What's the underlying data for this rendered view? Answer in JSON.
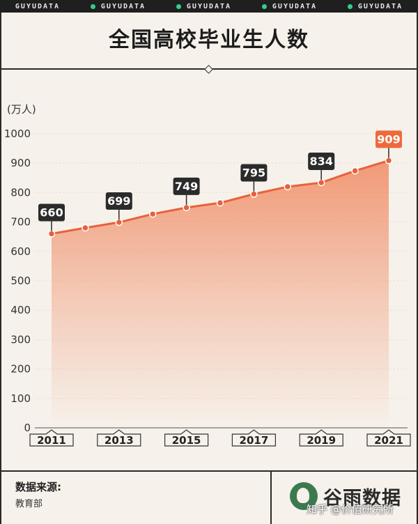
{
  "top_banner": {
    "repeat": 5,
    "brand": "GUYUDATA"
  },
  "title": "全国高校毕业生人数",
  "unit": "(万人)",
  "chart_data": {
    "type": "area",
    "x": [
      2011,
      2012,
      2013,
      2014,
      2015,
      2016,
      2017,
      2018,
      2019,
      2020,
      2021
    ],
    "values": [
      660,
      680,
      699,
      727,
      749,
      765,
      795,
      820,
      834,
      874,
      909
    ],
    "labeled_years": [
      2011,
      2013,
      2015,
      2017,
      2019,
      2021
    ],
    "x_tick_labels": [
      "2011",
      "2013",
      "2015",
      "2017",
      "2019",
      "2021"
    ],
    "y_ticks": [
      0,
      100,
      200,
      300,
      400,
      500,
      600,
      700,
      800,
      900,
      1000
    ],
    "ylim": [
      0,
      1000
    ],
    "highlight_year": 2021,
    "colors": {
      "line": "#e8613a",
      "fill": "#f08a62",
      "label_bg": "#2b2b2b",
      "highlight_bg": "#ee6a3c"
    }
  },
  "footer": {
    "source_title": "数据来源:",
    "source_value": "教育部",
    "logo_text": "谷雨数据",
    "watermark": "知乎 @价值研究所"
  }
}
